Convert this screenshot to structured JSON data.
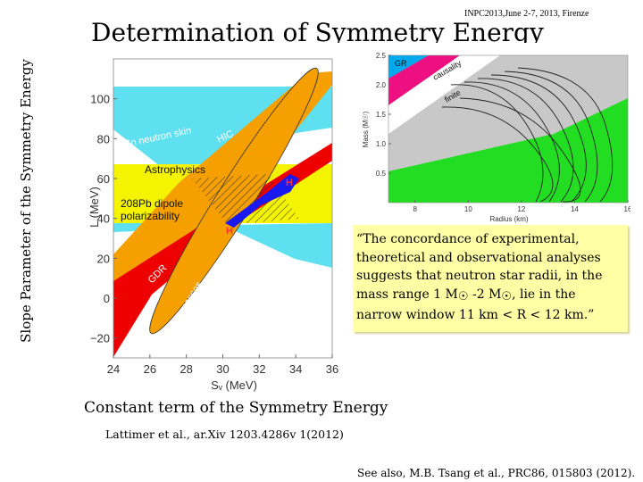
{
  "slide": {
    "header_note": "INPC2013,June 2-7, 2013, Firenze",
    "title": "Determination of Symmetry Energy",
    "y_axis_title": "Slope Parameter of the Symmetry Energy",
    "x_axis_title": "Constant term of the Symmetry Energy",
    "reference": "Lattimer et al., ar.Xiv 1203.4286v 1(2012)",
    "see_also": "See also, M.B. Tsang et al., PRC86, 015803 (2012)."
  },
  "quote": {
    "part1": "“The concordance of experimental, theoretical and observational analyses suggests that neutron star radii, in the mass range 1 M",
    "sun1": "☉",
    "part2": " -2 M",
    "sun2": "☉",
    "part3": ", lie in the narrow window 11 km < R < 12 km.”"
  },
  "chart_data": [
    {
      "type": "area",
      "xlabel": "Sᵥ (MeV)",
      "ylabel": "L (MeV)",
      "xlim": [
        24,
        36
      ],
      "ylim": [
        -30,
        120
      ],
      "x_ticks": [
        "24",
        "26",
        "28",
        "30",
        "32",
        "34",
        "36"
      ],
      "y_ticks": [
        "−20",
        "0",
        "20",
        "40",
        "60",
        "80",
        "100"
      ],
      "colors": {
        "sn_skin": "#5fe0f0",
        "astro": "#f4f400",
        "hic": "#f5a000",
        "gdr": "#ee0000",
        "overlap": "#1a1af0",
        "hatch": "#333333"
      },
      "region_labels": [
        "Sn neutron skin",
        "HIC",
        "Astrophysics",
        "208Pb dipole",
        "polarizability",
        "GDR",
        "Nuclear masses",
        "H",
        "H"
      ]
    },
    {
      "type": "line",
      "xlabel": "Radius (km)",
      "ylabel": "Mass (M☉)",
      "xlim": [
        7,
        16
      ],
      "ylim": [
        0,
        2.5
      ],
      "x_ticks": [
        "8",
        "10",
        "12",
        "14",
        "16"
      ],
      "y_ticks": [
        "0.5",
        "1.0",
        "1.5",
        "2.0",
        "2.5"
      ],
      "colors": {
        "gr": "#00a8ee",
        "causality": "#ee1080",
        "allowed": "#c8c8c8",
        "band": "#22dd22"
      },
      "region_labels": [
        "GR",
        "causality",
        "finite"
      ]
    }
  ]
}
